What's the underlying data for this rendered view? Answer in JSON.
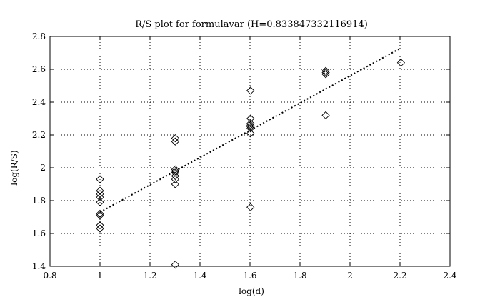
{
  "chart_data": {
    "type": "scatter",
    "title": "R/S plot for formulavar (H=0.833847332116914)",
    "xlabel": "log(d)",
    "ylabel": "log(R/S)",
    "xlim": [
      0.8,
      2.4
    ],
    "ylim": [
      1.4,
      2.8
    ],
    "xticks": [
      "0.8",
      "1",
      "1.2",
      "1.4",
      "1.6",
      "1.8",
      "2",
      "2.2",
      "2.4"
    ],
    "yticks": [
      "1.4",
      "1.6",
      "1.8",
      "2",
      "2.2",
      "2.4",
      "2.6",
      "2.8"
    ],
    "grid": true,
    "marker": "diamond",
    "series": [
      {
        "points": [
          [
            1.0,
            1.93
          ],
          [
            1.0,
            1.86
          ],
          [
            1.0,
            1.84
          ],
          [
            1.0,
            1.82
          ],
          [
            1.0,
            1.79
          ],
          [
            1.0,
            1.72
          ],
          [
            1.0,
            1.71
          ],
          [
            1.0,
            1.65
          ],
          [
            1.0,
            1.63
          ],
          [
            1.301,
            2.18
          ],
          [
            1.301,
            2.16
          ],
          [
            1.301,
            1.99
          ],
          [
            1.301,
            1.98
          ],
          [
            1.301,
            1.97
          ],
          [
            1.301,
            1.95
          ],
          [
            1.301,
            1.93
          ],
          [
            1.301,
            1.9
          ],
          [
            1.301,
            1.41
          ],
          [
            1.602,
            2.47
          ],
          [
            1.602,
            2.3
          ],
          [
            1.602,
            2.27
          ],
          [
            1.602,
            2.26
          ],
          [
            1.602,
            2.25
          ],
          [
            1.602,
            2.24
          ],
          [
            1.602,
            2.21
          ],
          [
            1.602,
            1.76
          ],
          [
            1.903,
            2.59
          ],
          [
            1.903,
            2.58
          ],
          [
            1.903,
            2.57
          ],
          [
            1.903,
            2.32
          ],
          [
            2.204,
            2.64
          ]
        ]
      }
    ],
    "fit_line": {
      "x": [
        1.0,
        2.204
      ],
      "y": [
        1.73,
        2.73
      ],
      "style": "dotted"
    }
  }
}
